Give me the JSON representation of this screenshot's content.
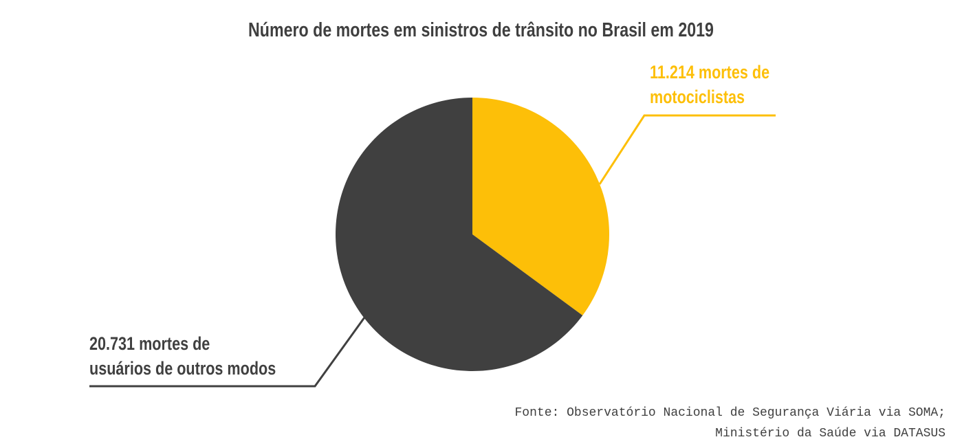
{
  "title": "Número de mortes em sinistros de trânsito no Brasil em 2019",
  "colors": {
    "motociclistas": "#fdbf08",
    "outros_modos": "#404040",
    "title_text": "#3f3f3f",
    "source_text": "#3f3f3f",
    "background": "#ffffff"
  },
  "chart_data": {
    "type": "pie",
    "title": "Número de mortes em sinistros de trânsito no Brasil em 2019",
    "total": 31945,
    "start_angle_deg": 0,
    "direction": "clockwise",
    "legend_position": "callout-labels",
    "slices": [
      {
        "category": "Motociclistas",
        "value": 11214,
        "display_label": "11.214 mortes de motociclistas",
        "color": "#fdbf08"
      },
      {
        "category": "Usuários de outros modos",
        "value": 20731,
        "display_label": "20.731 mortes de usuários de outros modos",
        "color": "#404040"
      }
    ]
  },
  "callouts": {
    "motociclistas": {
      "line1": "11.214 mortes de",
      "line2": "motociclistas"
    },
    "outros_modos": {
      "line1": "20.731 mortes de",
      "line2": "usuários de outros modos"
    }
  },
  "source": {
    "line1": "Fonte: Observatório Nacional de Segurança Viária via SOMA;",
    "line2": "Ministério da Saúde via DATASUS"
  }
}
